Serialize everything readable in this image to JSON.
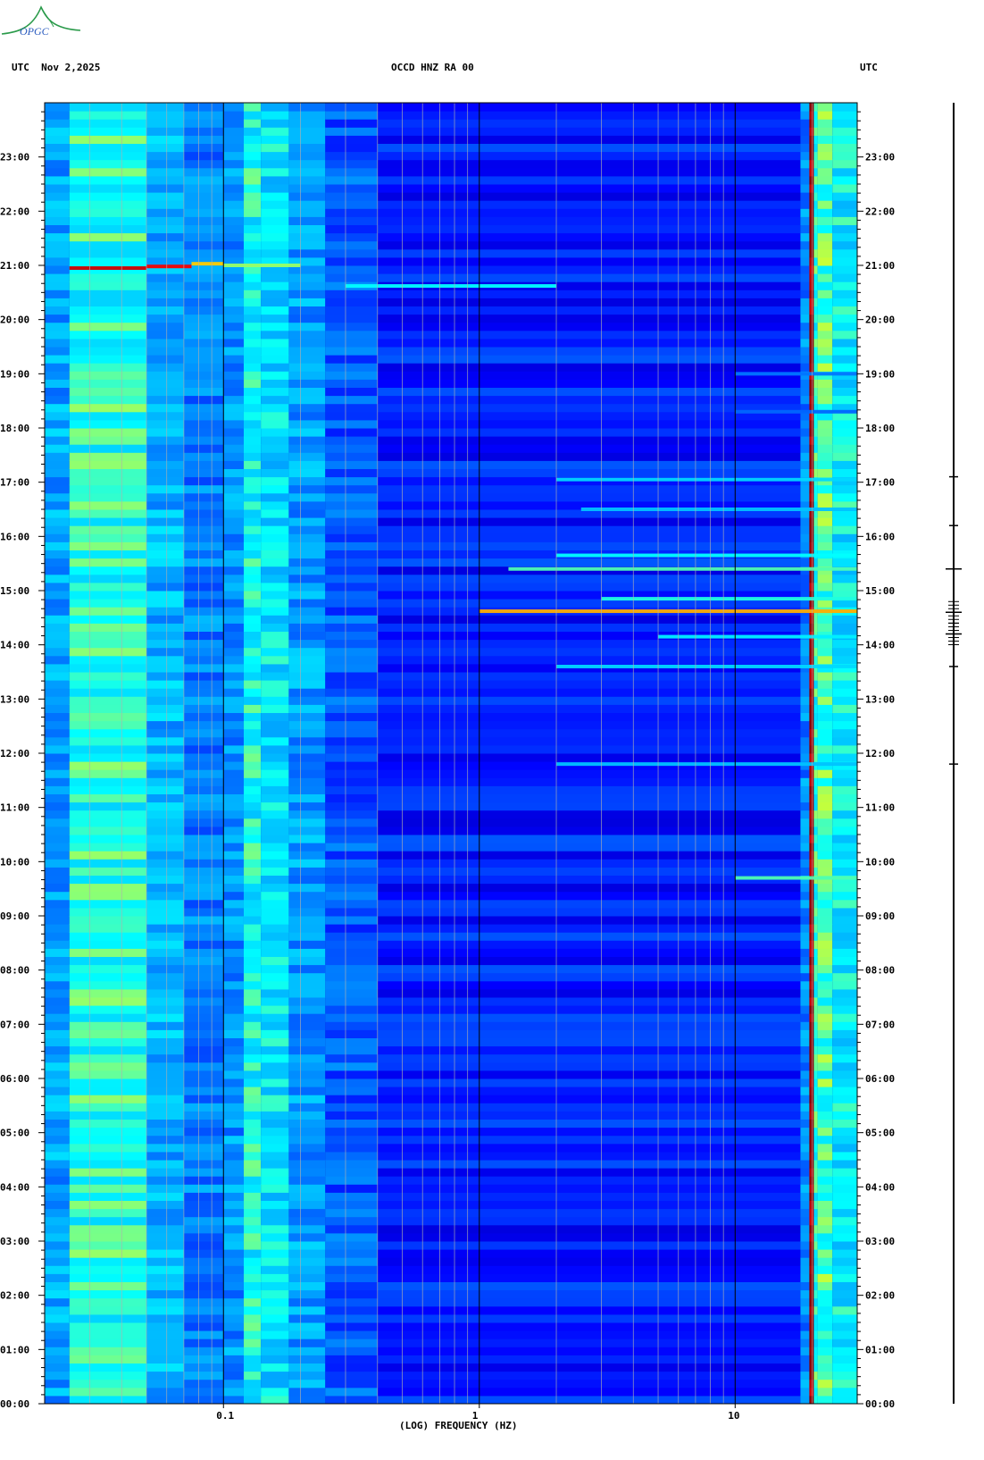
{
  "header": {
    "left": "UTC  Nov 2,2025",
    "center": "OCCD HNZ RA 00",
    "right": "UTC",
    "logo_text": "OPGC"
  },
  "chart_data": {
    "type": "heatmap",
    "title": "OCCD HNZ RA 00",
    "date": "Nov 2,2025",
    "timezone": "UTC",
    "xlabel": "(LOG) FREQUENCY (HZ)",
    "xscale": "log",
    "xlim": [
      0.02,
      30
    ],
    "x_ticks": [
      {
        "value": 0.1,
        "label": "0.1"
      },
      {
        "value": 1,
        "label": "1"
      },
      {
        "value": 10,
        "label": "10"
      }
    ],
    "x_minor_gridlines": [
      0.03,
      0.04,
      0.05,
      0.06,
      0.07,
      0.08,
      0.09,
      0.2,
      0.3,
      0.4,
      0.5,
      0.6,
      0.7,
      0.8,
      0.9,
      2,
      3,
      4,
      5,
      6,
      7,
      8,
      9,
      20
    ],
    "ylim_hours": [
      0,
      24
    ],
    "y_ticks": [
      {
        "value": 0,
        "label": "00:00"
      },
      {
        "value": 1,
        "label": "01:00"
      },
      {
        "value": 2,
        "label": "02:00"
      },
      {
        "value": 3,
        "label": "03:00"
      },
      {
        "value": 4,
        "label": "04:00"
      },
      {
        "value": 5,
        "label": "05:00"
      },
      {
        "value": 6,
        "label": "06:00"
      },
      {
        "value": 7,
        "label": "07:00"
      },
      {
        "value": 8,
        "label": "08:00"
      },
      {
        "value": 9,
        "label": "09:00"
      },
      {
        "value": 10,
        "label": "10:00"
      },
      {
        "value": 11,
        "label": "11:00"
      },
      {
        "value": 12,
        "label": "12:00"
      },
      {
        "value": 13,
        "label": "13:00"
      },
      {
        "value": 14,
        "label": "14:00"
      },
      {
        "value": 15,
        "label": "15:00"
      },
      {
        "value": 16,
        "label": "16:00"
      },
      {
        "value": 17,
        "label": "17:00"
      },
      {
        "value": 18,
        "label": "18:00"
      },
      {
        "value": 19,
        "label": "19:00"
      },
      {
        "value": 20,
        "label": "20:00"
      },
      {
        "value": 21,
        "label": "21:00"
      },
      {
        "value": 22,
        "label": "22:00"
      },
      {
        "value": 23,
        "label": "23:00"
      }
    ],
    "colormap": [
      "#00008b",
      "#0000ff",
      "#0080ff",
      "#00ffff",
      "#ffff00",
      "#ff0000",
      "#8b0000"
    ],
    "background_color": "#0a28b4",
    "columns": [
      {
        "f0": 0.02,
        "f1": 0.025,
        "level": 0.38
      },
      {
        "f0": 0.025,
        "f1": 0.05,
        "level": 0.52
      },
      {
        "f0": 0.05,
        "f1": 0.07,
        "level": 0.4
      },
      {
        "f0": 0.07,
        "f1": 0.1,
        "level": 0.33
      },
      {
        "f0": 0.1,
        "f1": 0.12,
        "level": 0.36
      },
      {
        "f0": 0.12,
        "f1": 0.14,
        "level": 0.5
      },
      {
        "f0": 0.14,
        "f1": 0.18,
        "level": 0.46
      },
      {
        "f0": 0.18,
        "f1": 0.25,
        "level": 0.37
      },
      {
        "f0": 0.25,
        "f1": 0.4,
        "level": 0.28
      },
      {
        "f0": 0.4,
        "f1": 18,
        "level": 0.2
      },
      {
        "f0": 18,
        "f1": 19.5,
        "level": 0.34
      },
      {
        "f0": 19.5,
        "f1": 20.3,
        "level": 0.97
      },
      {
        "f0": 20.3,
        "f1": 21,
        "level": 0.52
      },
      {
        "f0": 21,
        "f1": 24,
        "level": 0.55
      },
      {
        "f0": 24,
        "f1": 30,
        "level": 0.48
      }
    ],
    "events": [
      {
        "time": 20.95,
        "f0": 0.025,
        "f1": 0.05,
        "level": 0.9
      },
      {
        "time": 20.98,
        "f0": 0.05,
        "f1": 0.075,
        "level": 0.85
      },
      {
        "time": 21.03,
        "f0": 0.075,
        "f1": 0.1,
        "level": 0.7
      },
      {
        "time": 21.0,
        "f0": 0.1,
        "f1": 0.2,
        "level": 0.6
      },
      {
        "time": 20.62,
        "f0": 0.3,
        "f1": 2.0,
        "level": 0.5
      },
      {
        "time": 17.05,
        "f0": 2.0,
        "f1": 30,
        "level": 0.45
      },
      {
        "time": 16.5,
        "f0": 2.5,
        "f1": 30,
        "level": 0.42
      },
      {
        "time": 15.65,
        "f0": 2.0,
        "f1": 30,
        "level": 0.5
      },
      {
        "time": 15.4,
        "f0": 1.3,
        "f1": 30,
        "level": 0.55
      },
      {
        "time": 14.85,
        "f0": 3.0,
        "f1": 30,
        "level": 0.52
      },
      {
        "time": 14.62,
        "f0": 1.0,
        "f1": 30,
        "level": 0.72
      },
      {
        "time": 14.15,
        "f0": 5.0,
        "f1": 30,
        "level": 0.48
      },
      {
        "time": 13.6,
        "f0": 2.0,
        "f1": 30,
        "level": 0.45
      },
      {
        "time": 11.8,
        "f0": 2.0,
        "f1": 30,
        "level": 0.42
      },
      {
        "time": 9.7,
        "f0": 10,
        "f1": 30,
        "level": 0.55
      },
      {
        "time": 19.0,
        "f0": 10,
        "f1": 30,
        "level": 0.32
      },
      {
        "time": 18.3,
        "f0": 10,
        "f1": 30,
        "level": 0.3
      }
    ],
    "seismogram_events_hours": [
      11.8,
      13.6,
      14.2,
      14.6,
      15.4,
      16.2,
      17.1
    ]
  }
}
